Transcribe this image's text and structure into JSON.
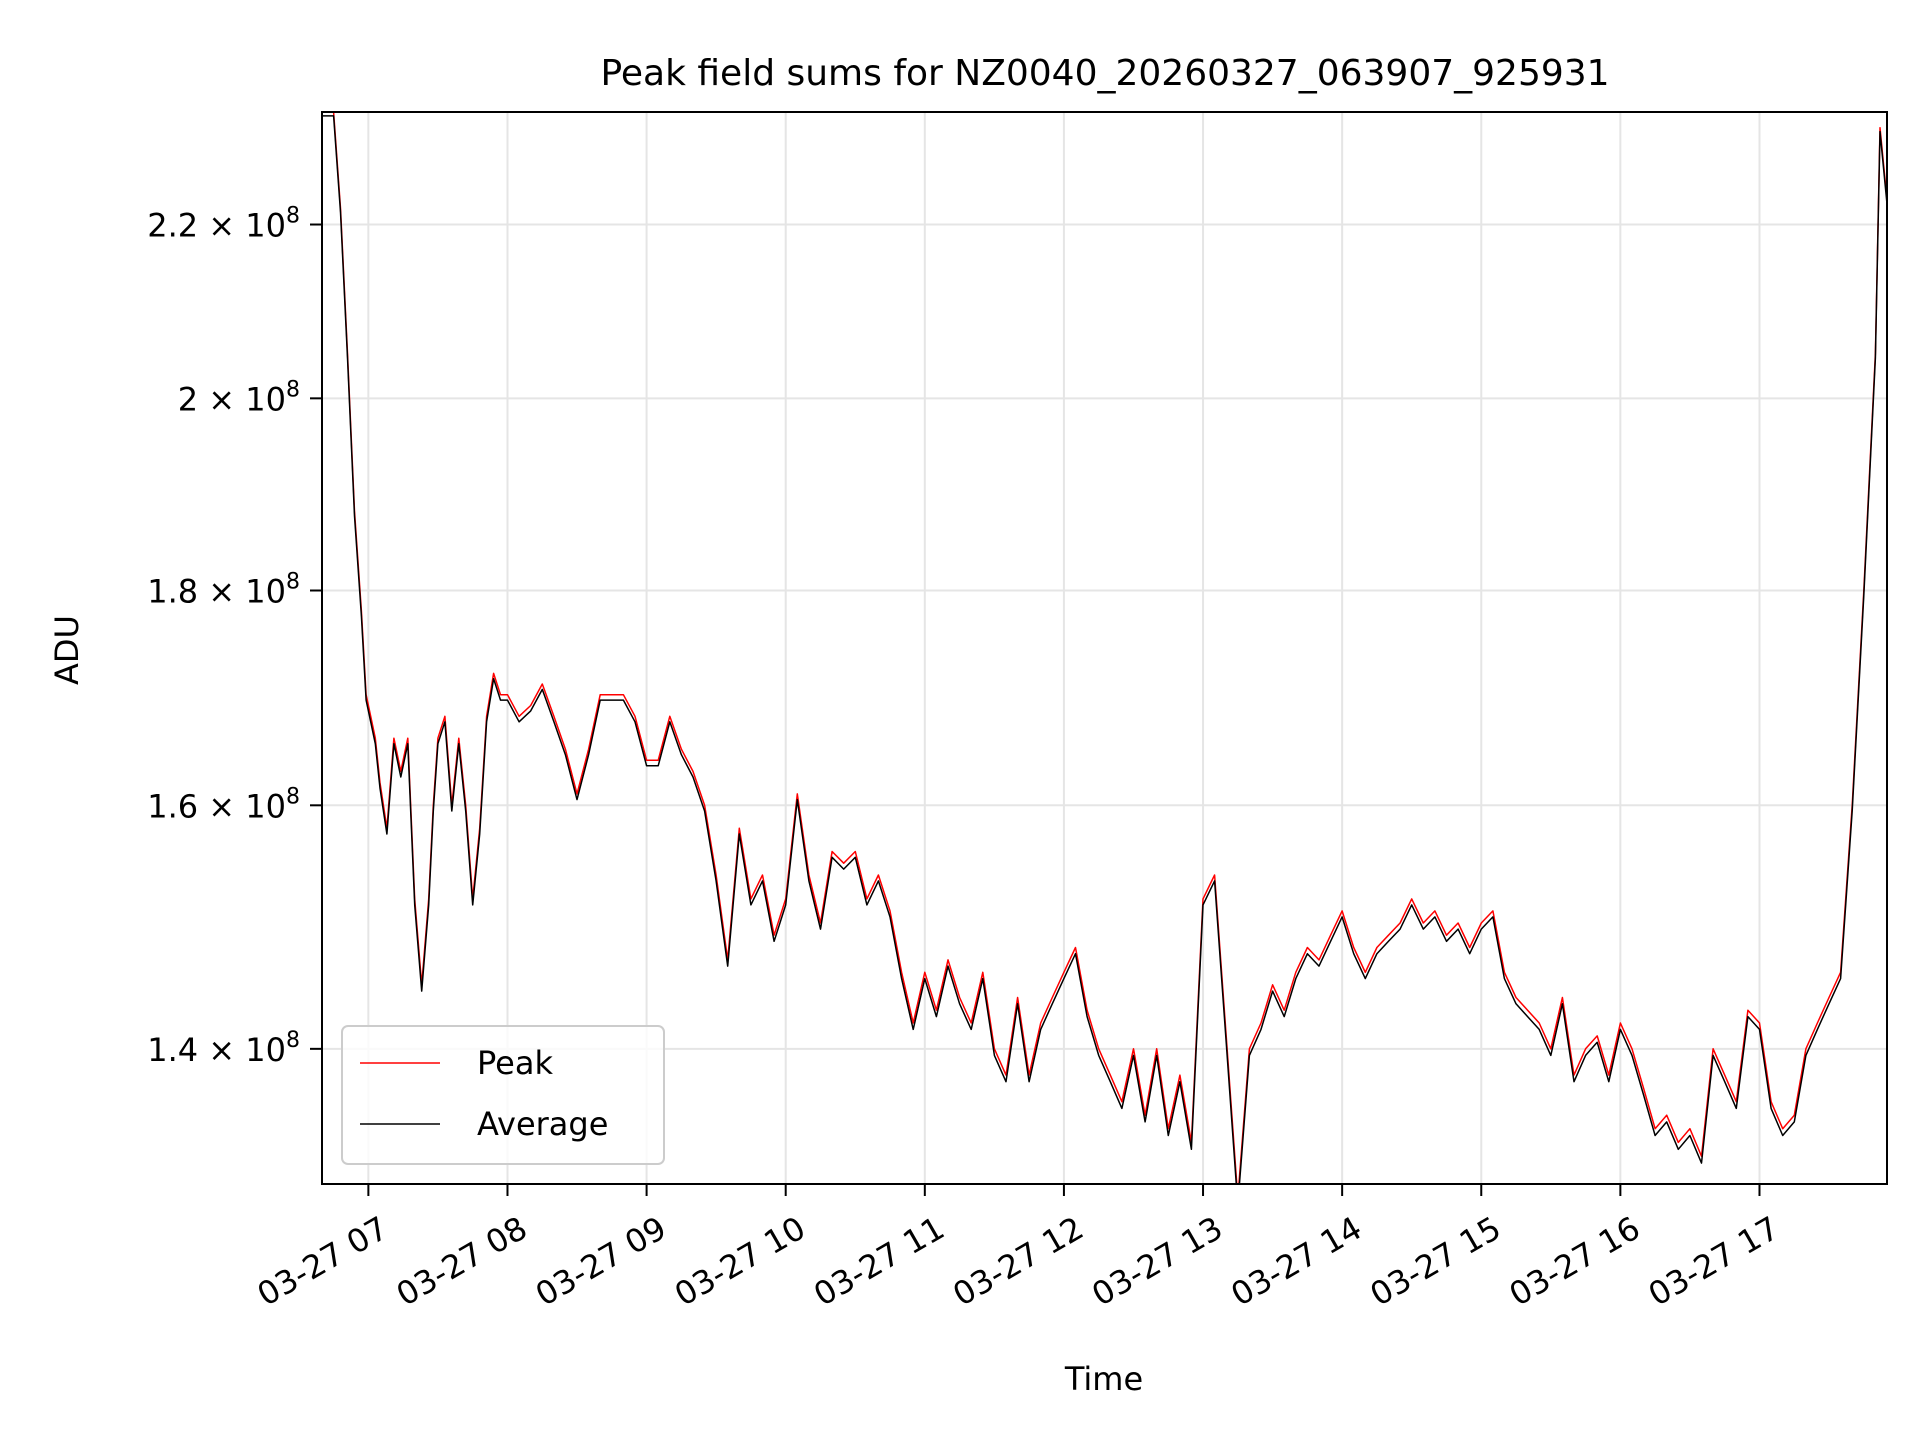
{
  "chart_data": {
    "type": "line",
    "title": "Peak field sums for NZ0040_20260327_063907_925931",
    "xlabel": "Time",
    "ylabel": "ADU",
    "y_scale": "log",
    "ylim": [
      130000000,
      234000000
    ],
    "xlim": [
      "2026-03-27 06:40",
      "2026-03-27 17:55"
    ],
    "grid": true,
    "legend_position": "lower-left",
    "x_ticks": [
      {
        "t": "2026-03-27 07:00",
        "label": "03-27 07"
      },
      {
        "t": "2026-03-27 08:00",
        "label": "03-27 08"
      },
      {
        "t": "2026-03-27 09:00",
        "label": "03-27 09"
      },
      {
        "t": "2026-03-27 10:00",
        "label": "03-27 10"
      },
      {
        "t": "2026-03-27 11:00",
        "label": "03-27 11"
      },
      {
        "t": "2026-03-27 12:00",
        "label": "03-27 12"
      },
      {
        "t": "2026-03-27 13:00",
        "label": "03-27 13"
      },
      {
        "t": "2026-03-27 14:00",
        "label": "03-27 14"
      },
      {
        "t": "2026-03-27 15:00",
        "label": "03-27 15"
      },
      {
        "t": "2026-03-27 16:00",
        "label": "03-27 16"
      },
      {
        "t": "2026-03-27 17:00",
        "label": "03-27 17"
      }
    ],
    "y_ticks": [
      {
        "value": 140000000,
        "label": "1.4",
        "exp_label": "8"
      },
      {
        "value": 160000000,
        "label": "1.6",
        "exp_label": "8"
      },
      {
        "value": 180000000,
        "label": "1.8",
        "exp_label": "8"
      },
      {
        "value": 200000000,
        "label": "2",
        "exp_label": "8"
      },
      {
        "value": 220000000,
        "label": "2.2",
        "exp_label": "8"
      }
    ],
    "series": [
      {
        "name": "Peak",
        "color": "#ff0000",
        "t": [
          "2026-03-27 06:40",
          "2026-03-27 06:45",
          "2026-03-27 06:48",
          "2026-03-27 06:51",
          "2026-03-27 06:54",
          "2026-03-27 06:57",
          "2026-03-27 06:59",
          "2026-03-27 07:01",
          "2026-03-27 07:03",
          "2026-03-27 07:05",
          "2026-03-27 07:08",
          "2026-03-27 07:11",
          "2026-03-27 07:14",
          "2026-03-27 07:17",
          "2026-03-27 07:20",
          "2026-03-27 07:23",
          "2026-03-27 07:26",
          "2026-03-27 07:28",
          "2026-03-27 07:30",
          "2026-03-27 07:33",
          "2026-03-27 07:36",
          "2026-03-27 07:39",
          "2026-03-27 07:42",
          "2026-03-27 07:45",
          "2026-03-27 07:48",
          "2026-03-27 07:51",
          "2026-03-27 07:54",
          "2026-03-27 07:57",
          "2026-03-27 08:00",
          "2026-03-27 08:05",
          "2026-03-27 08:10",
          "2026-03-27 08:15",
          "2026-03-27 08:20",
          "2026-03-27 08:25",
          "2026-03-27 08:30",
          "2026-03-27 08:35",
          "2026-03-27 08:40",
          "2026-03-27 08:45",
          "2026-03-27 08:50",
          "2026-03-27 08:55",
          "2026-03-27 09:00",
          "2026-03-27 09:05",
          "2026-03-27 09:10",
          "2026-03-27 09:15",
          "2026-03-27 09:20",
          "2026-03-27 09:25",
          "2026-03-27 09:30",
          "2026-03-27 09:35",
          "2026-03-27 09:40",
          "2026-03-27 09:45",
          "2026-03-27 09:50",
          "2026-03-27 09:55",
          "2026-03-27 10:00",
          "2026-03-27 10:05",
          "2026-03-27 10:10",
          "2026-03-27 10:15",
          "2026-03-27 10:20",
          "2026-03-27 10:25",
          "2026-03-27 10:30",
          "2026-03-27 10:35",
          "2026-03-27 10:40",
          "2026-03-27 10:45",
          "2026-03-27 10:50",
          "2026-03-27 10:55",
          "2026-03-27 11:00",
          "2026-03-27 11:05",
          "2026-03-27 11:10",
          "2026-03-27 11:15",
          "2026-03-27 11:20",
          "2026-03-27 11:25",
          "2026-03-27 11:30",
          "2026-03-27 11:35",
          "2026-03-27 11:40",
          "2026-03-27 11:45",
          "2026-03-27 11:50",
          "2026-03-27 11:55",
          "2026-03-27 12:00",
          "2026-03-27 12:05",
          "2026-03-27 12:10",
          "2026-03-27 12:15",
          "2026-03-27 12:20",
          "2026-03-27 12:25",
          "2026-03-27 12:30",
          "2026-03-27 12:35",
          "2026-03-27 12:40",
          "2026-03-27 12:45",
          "2026-03-27 12:50",
          "2026-03-27 12:55",
          "2026-03-27 13:00",
          "2026-03-27 13:05",
          "2026-03-27 13:10",
          "2026-03-27 13:15",
          "2026-03-27 13:20",
          "2026-03-27 13:25",
          "2026-03-27 13:30",
          "2026-03-27 13:35",
          "2026-03-27 13:40",
          "2026-03-27 13:45",
          "2026-03-27 13:50",
          "2026-03-27 13:55",
          "2026-03-27 14:00",
          "2026-03-27 14:05",
          "2026-03-27 14:10",
          "2026-03-27 14:15",
          "2026-03-27 14:20",
          "2026-03-27 14:25",
          "2026-03-27 14:30",
          "2026-03-27 14:35",
          "2026-03-27 14:40",
          "2026-03-27 14:45",
          "2026-03-27 14:50",
          "2026-03-27 14:55",
          "2026-03-27 15:00",
          "2026-03-27 15:05",
          "2026-03-27 15:10",
          "2026-03-27 15:15",
          "2026-03-27 15:20",
          "2026-03-27 15:25",
          "2026-03-27 15:30",
          "2026-03-27 15:35",
          "2026-03-27 15:40",
          "2026-03-27 15:45",
          "2026-03-27 15:50",
          "2026-03-27 15:55",
          "2026-03-27 16:00",
          "2026-03-27 16:05",
          "2026-03-27 16:10",
          "2026-03-27 16:15",
          "2026-03-27 16:20",
          "2026-03-27 16:25",
          "2026-03-27 16:30",
          "2026-03-27 16:35",
          "2026-03-27 16:40",
          "2026-03-27 16:45",
          "2026-03-27 16:50",
          "2026-03-27 16:55",
          "2026-03-27 17:00",
          "2026-03-27 17:05",
          "2026-03-27 17:10",
          "2026-03-27 17:15",
          "2026-03-27 17:20",
          "2026-03-27 17:25",
          "2026-03-27 17:30",
          "2026-03-27 17:35",
          "2026-03-27 17:40",
          "2026-03-27 17:45",
          "2026-03-27 17:50",
          "2026-03-27 17:52",
          "2026-03-27 17:55"
        ],
        "values": [
          234000000,
          234000000,
          222000000,
          205000000,
          188000000,
          178000000,
          170000000,
          168000000,
          166000000,
          162000000,
          158000000,
          166000000,
          163000000,
          166000000,
          152000000,
          145000000,
          152000000,
          160000000,
          166000000,
          168000000,
          160000000,
          166000000,
          160000000,
          152000000,
          158000000,
          168000000,
          172000000,
          170000000,
          170000000,
          168000000,
          169000000,
          171000000,
          168000000,
          165000000,
          161000000,
          165000000,
          170000000,
          170000000,
          170000000,
          168000000,
          164000000,
          164000000,
          168000000,
          165000000,
          163000000,
          160000000,
          154000000,
          147000000,
          158000000,
          152000000,
          154000000,
          149000000,
          152000000,
          161000000,
          154000000,
          150000000,
          156000000,
          155000000,
          156000000,
          152000000,
          154000000,
          151000000,
          146000000,
          142000000,
          146000000,
          143000000,
          147000000,
          144000000,
          142000000,
          146000000,
          140000000,
          138000000,
          144000000,
          138000000,
          142000000,
          144000000,
          146000000,
          148000000,
          143000000,
          140000000,
          138000000,
          136000000,
          140000000,
          135000000,
          140000000,
          134000000,
          138000000,
          133000000,
          152000000,
          154000000,
          141000000,
          129000000,
          140000000,
          142000000,
          145000000,
          143000000,
          146000000,
          148000000,
          147000000,
          149000000,
          151000000,
          148000000,
          146000000,
          148000000,
          149000000,
          150000000,
          152000000,
          150000000,
          151000000,
          149000000,
          150000000,
          148000000,
          150000000,
          151000000,
          146000000,
          144000000,
          143000000,
          142000000,
          140000000,
          144000000,
          138000000,
          140000000,
          141000000,
          138000000,
          142000000,
          140000000,
          137000000,
          134000000,
          135000000,
          133000000,
          134000000,
          132000000,
          140000000,
          138000000,
          136000000,
          143000000,
          142000000,
          136000000,
          134000000,
          135000000,
          140000000,
          142000000,
          144000000,
          146000000,
          160000000,
          180000000,
          205000000,
          232000000,
          223000000
        ]
      },
      {
        "name": "Average",
        "color": "#000000",
        "t": [
          "2026-03-27 06:40",
          "2026-03-27 06:45",
          "2026-03-27 06:48",
          "2026-03-27 06:51",
          "2026-03-27 06:54",
          "2026-03-27 06:57",
          "2026-03-27 06:59",
          "2026-03-27 07:01",
          "2026-03-27 07:03",
          "2026-03-27 07:05",
          "2026-03-27 07:08",
          "2026-03-27 07:11",
          "2026-03-27 07:14",
          "2026-03-27 07:17",
          "2026-03-27 07:20",
          "2026-03-27 07:23",
          "2026-03-27 07:26",
          "2026-03-27 07:28",
          "2026-03-27 07:30",
          "2026-03-27 07:33",
          "2026-03-27 07:36",
          "2026-03-27 07:39",
          "2026-03-27 07:42",
          "2026-03-27 07:45",
          "2026-03-27 07:48",
          "2026-03-27 07:51",
          "2026-03-27 07:54",
          "2026-03-27 07:57",
          "2026-03-27 08:00",
          "2026-03-27 08:05",
          "2026-03-27 08:10",
          "2026-03-27 08:15",
          "2026-03-27 08:20",
          "2026-03-27 08:25",
          "2026-03-27 08:30",
          "2026-03-27 08:35",
          "2026-03-27 08:40",
          "2026-03-27 08:45",
          "2026-03-27 08:50",
          "2026-03-27 08:55",
          "2026-03-27 09:00",
          "2026-03-27 09:05",
          "2026-03-27 09:10",
          "2026-03-27 09:15",
          "2026-03-27 09:20",
          "2026-03-27 09:25",
          "2026-03-27 09:30",
          "2026-03-27 09:35",
          "2026-03-27 09:40",
          "2026-03-27 09:45",
          "2026-03-27 09:50",
          "2026-03-27 09:55",
          "2026-03-27 10:00",
          "2026-03-27 10:05",
          "2026-03-27 10:10",
          "2026-03-27 10:15",
          "2026-03-27 10:20",
          "2026-03-27 10:25",
          "2026-03-27 10:30",
          "2026-03-27 10:35",
          "2026-03-27 10:40",
          "2026-03-27 10:45",
          "2026-03-27 10:50",
          "2026-03-27 10:55",
          "2026-03-27 11:00",
          "2026-03-27 11:05",
          "2026-03-27 11:10",
          "2026-03-27 11:15",
          "2026-03-27 11:20",
          "2026-03-27 11:25",
          "2026-03-27 11:30",
          "2026-03-27 11:35",
          "2026-03-27 11:40",
          "2026-03-27 11:45",
          "2026-03-27 11:50",
          "2026-03-27 11:55",
          "2026-03-27 12:00",
          "2026-03-27 12:05",
          "2026-03-27 12:10",
          "2026-03-27 12:15",
          "2026-03-27 12:20",
          "2026-03-27 12:25",
          "2026-03-27 12:30",
          "2026-03-27 12:35",
          "2026-03-27 12:40",
          "2026-03-27 12:45",
          "2026-03-27 12:50",
          "2026-03-27 12:55",
          "2026-03-27 13:00",
          "2026-03-27 13:05",
          "2026-03-27 13:10",
          "2026-03-27 13:15",
          "2026-03-27 13:20",
          "2026-03-27 13:25",
          "2026-03-27 13:30",
          "2026-03-27 13:35",
          "2026-03-27 13:40",
          "2026-03-27 13:45",
          "2026-03-27 13:50",
          "2026-03-27 13:55",
          "2026-03-27 14:00",
          "2026-03-27 14:05",
          "2026-03-27 14:10",
          "2026-03-27 14:15",
          "2026-03-27 14:20",
          "2026-03-27 14:25",
          "2026-03-27 14:30",
          "2026-03-27 14:35",
          "2026-03-27 14:40",
          "2026-03-27 14:45",
          "2026-03-27 14:50",
          "2026-03-27 14:55",
          "2026-03-27 15:00",
          "2026-03-27 15:05",
          "2026-03-27 15:10",
          "2026-03-27 15:15",
          "2026-03-27 15:20",
          "2026-03-27 15:25",
          "2026-03-27 15:30",
          "2026-03-27 15:35",
          "2026-03-27 15:40",
          "2026-03-27 15:45",
          "2026-03-27 15:50",
          "2026-03-27 15:55",
          "2026-03-27 16:00",
          "2026-03-27 16:05",
          "2026-03-27 16:10",
          "2026-03-27 16:15",
          "2026-03-27 16:20",
          "2026-03-27 16:25",
          "2026-03-27 16:30",
          "2026-03-27 16:35",
          "2026-03-27 16:40",
          "2026-03-27 16:45",
          "2026-03-27 16:50",
          "2026-03-27 16:55",
          "2026-03-27 17:00",
          "2026-03-27 17:05",
          "2026-03-27 17:10",
          "2026-03-27 17:15",
          "2026-03-27 17:20",
          "2026-03-27 17:25",
          "2026-03-27 17:30",
          "2026-03-27 17:35",
          "2026-03-27 17:40",
          "2026-03-27 17:45",
          "2026-03-27 17:50",
          "2026-03-27 17:52",
          "2026-03-27 17:55"
        ],
        "values": [
          233500000,
          233500000,
          221500000,
          204500000,
          187500000,
          177500000,
          169500000,
          167500000,
          165500000,
          161500000,
          157500000,
          165500000,
          162500000,
          165500000,
          151500000,
          144500000,
          151500000,
          159500000,
          165500000,
          167500000,
          159500000,
          165500000,
          159500000,
          151500000,
          157500000,
          167500000,
          171500000,
          169500000,
          169500000,
          167500000,
          168500000,
          170500000,
          167500000,
          164500000,
          160500000,
          164500000,
          169500000,
          169500000,
          169500000,
          167500000,
          163500000,
          163500000,
          167500000,
          164500000,
          162500000,
          159500000,
          153500000,
          146500000,
          157500000,
          151500000,
          153500000,
          148500000,
          151500000,
          160500000,
          153500000,
          149500000,
          155500000,
          154500000,
          155500000,
          151500000,
          153500000,
          150500000,
          145500000,
          141500000,
          145500000,
          142500000,
          146500000,
          143500000,
          141500000,
          145500000,
          139500000,
          137500000,
          143500000,
          137500000,
          141500000,
          143500000,
          145500000,
          147500000,
          142500000,
          139500000,
          137500000,
          135500000,
          139500000,
          134500000,
          139500000,
          133500000,
          137500000,
          132500000,
          151500000,
          153500000,
          140500000,
          128500000,
          139500000,
          141500000,
          144500000,
          142500000,
          145500000,
          147500000,
          146500000,
          148500000,
          150500000,
          147500000,
          145500000,
          147500000,
          148500000,
          149500000,
          151500000,
          149500000,
          150500000,
          148500000,
          149500000,
          147500000,
          149500000,
          150500000,
          145500000,
          143500000,
          142500000,
          141500000,
          139500000,
          143500000,
          137500000,
          139500000,
          140500000,
          137500000,
          141500000,
          139500000,
          136500000,
          133500000,
          134500000,
          132500000,
          133500000,
          131500000,
          139500000,
          137500000,
          135500000,
          142500000,
          141500000,
          135500000,
          133500000,
          134500000,
          139500000,
          141500000,
          143500000,
          145500000,
          159500000,
          179500000,
          204500000,
          231500000,
          222500000
        ]
      }
    ]
  }
}
